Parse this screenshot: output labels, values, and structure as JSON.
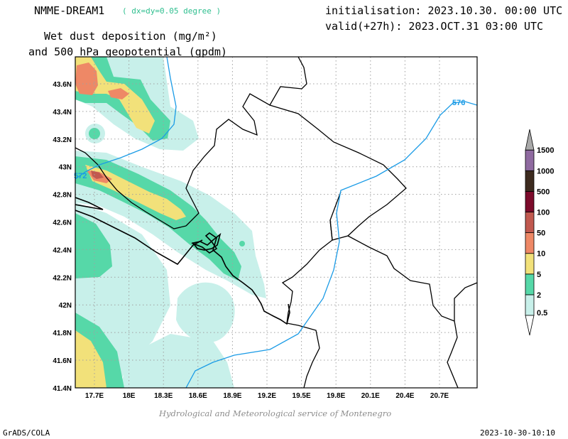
{
  "header": {
    "model_name": "NMME-DREAM1",
    "resolution_note": "( dx=dy=0.05 degree )",
    "title_line1": "Wet dust deposition (mg/m²)",
    "title_line2": "and 500 hPa geopotential (gpdm)",
    "init_text": "initialisation: 2023.10.30. 00:00 UTC",
    "valid_text": "valid(+27h): 2023.OCT.31 03:00 UTC"
  },
  "axes": {
    "x_labels": [
      "17.7E",
      "18E",
      "18.3E",
      "18.6E",
      "18.9E",
      "19.2E",
      "19.5E",
      "19.8E",
      "20.1E",
      "20.4E",
      "20.7E"
    ],
    "y_labels": [
      "43.6N",
      "43.4N",
      "43.2N",
      "43N",
      "42.8N",
      "42.6N",
      "42.4N",
      "42.2N",
      "42N",
      "41.8N",
      "41.6N",
      "41.4N"
    ]
  },
  "contours": {
    "labels": [
      "576",
      "572"
    ],
    "color": "#1a9be6"
  },
  "legend": {
    "levels": [
      "0.5",
      "2",
      "5",
      "10",
      "50",
      "100",
      "500",
      "1000",
      "1500"
    ],
    "colors": [
      "#c8f0ea",
      "#56d8a8",
      "#f2e17a",
      "#ee8866",
      "#c1594f",
      "#7c0b2b",
      "#3d2b1f",
      "#8f6aa0",
      "#a9a9a9"
    ]
  },
  "footer": {
    "credit": "Hydrological and Meteorological service of Montenegro",
    "left": "GrADS/COLA",
    "right": "2023-10-30-10:10"
  }
}
